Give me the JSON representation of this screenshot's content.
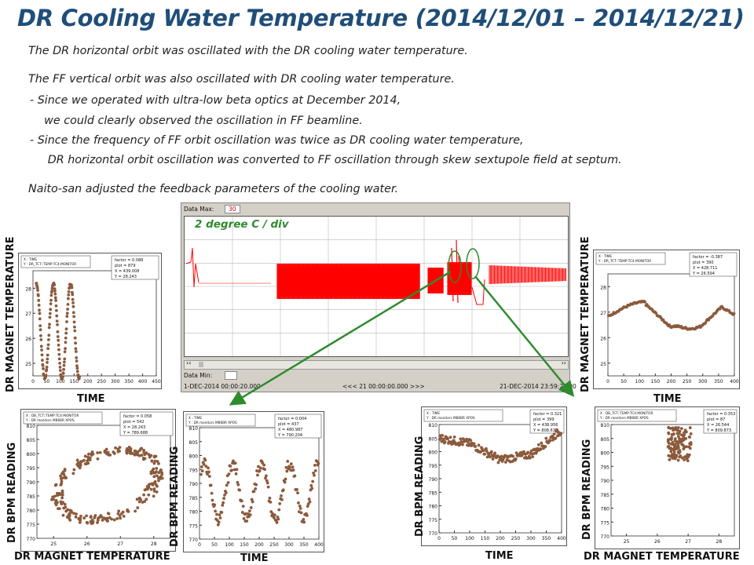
{
  "title": "DR Cooling Water Temperature (2014/12/01 – 2014/12/21)",
  "paragraphs": [
    "The DR horizontal orbit was oscillated with the DR cooling water temperature.",
    "The FF vertical orbit was also oscillated with DR cooling water temperature.",
    " - Since we operated with ultra-low beta optics at December 2014,",
    "    we could clearly observed the oscillation in FF beamline.",
    " - Since the frequency of FF orbit oscillation was twice as DR cooling water temperature,",
    "     DR horizontal orbit oscillation was converted to FF oscillation through skew sextupole field at septum.",
    "Naito-san adjusted the feedback parameters of the cooling water."
  ],
  "scope": {
    "data_max_label": "Data Max:",
    "data_max_value": "30",
    "data_min_label": "Data Min:",
    "data_min_value": "",
    "start_time": "1-DEC-2014 00:00:20.000",
    "span": "<<< 21 00:00:00.000 >>>",
    "end_time": "21-DEC-2014 23:59:20.00",
    "annotation": "2 degree C / div",
    "colors": {
      "signal": "#ff0000",
      "arrow": "#2e8b2e"
    }
  },
  "charts": {
    "temp_left": {
      "legend": [
        "X : TIME",
        "Y : DR_TCT::TEMP:TC4:MONITOR"
      ],
      "stats": [
        "factor = 0.088",
        "plot = 879",
        "X = 439.008",
        "Y = 28.243"
      ],
      "ylabel": "DR MAGNET TEMPERATURE",
      "xlabel": "TIME",
      "yticks": [
        "28",
        "27",
        "26",
        "25"
      ],
      "xticks": [
        "0",
        "50",
        "100",
        "150",
        "200",
        "250",
        "300",
        "350",
        "400",
        "450"
      ]
    },
    "temp_right": {
      "legend": [
        "X : TIME",
        "Y : DR_TCT::TEMP:TC4:MONITOR"
      ],
      "stats": [
        "factor = -0.387",
        "plot = 390",
        "X = 428.711",
        "Y = 26.594"
      ],
      "ylabel": "DR MAGNET TEMPERATURE",
      "xlabel": "TIME",
      "yticks": [
        "28",
        "27",
        "26",
        "25"
      ],
      "xticks": [
        "0",
        "50",
        "100",
        "150",
        "200",
        "250",
        "300",
        "350",
        "400"
      ]
    },
    "bpm_vs_temp_left": {
      "legend": [
        "X : DB_TCT::TEMP:TC4:MONITOR",
        "Y : DR monitors MB6BR XPOS"
      ],
      "stats": [
        "factor = 0.058",
        "plot = 542",
        "X = 28.243",
        "Y = 789.688"
      ],
      "ylabel": "DR BPM READING",
      "xlabel": "DR MAGNET TEMPERATURE",
      "yticks": [
        "810",
        "805",
        "800",
        "795",
        "790",
        "785",
        "780",
        "775",
        "770"
      ],
      "xticks": [
        "25",
        "26",
        "27",
        "28"
      ]
    },
    "bpm_vs_time_left": {
      "legend": [
        "X : TIME",
        "Y : DR monitors MB6BR XPOS"
      ],
      "stats": [
        "factor = 0.004",
        "plot = 437",
        "X = 480.987",
        "Y = 790.204"
      ],
      "ylabel": "DR BPM READING",
      "xlabel": "TIME",
      "yticks": [
        "810",
        "805",
        "800",
        "795",
        "790",
        "785",
        "780",
        "775",
        "770"
      ],
      "xticks": [
        "0",
        "50",
        "100",
        "150",
        "200",
        "250",
        "300",
        "350",
        "400"
      ]
    },
    "bpm_vs_time_right": {
      "legend": [
        "X : TIME",
        "Y : DR monitors MB6BR XPOS"
      ],
      "stats": [
        "factor = 0.321",
        "plot = 399",
        "X = 438.956",
        "Y = 808.637"
      ],
      "ylabel": "DR BPM READING",
      "xlabel": "TIME",
      "yticks": [
        "810",
        "805",
        "800",
        "795",
        "790",
        "785",
        "780",
        "775",
        "770"
      ],
      "xticks": [
        "0",
        "50",
        "100",
        "150",
        "200",
        "250",
        "300",
        "350",
        "400"
      ]
    },
    "bpm_vs_temp_right": {
      "legend": [
        "X : DB_TCT::TEMP:TC4:MONITOR",
        "Y : DR monitors MB6BR XPOS"
      ],
      "stats": [
        "factor = 0.353",
        "plot = 87",
        "X = 26.544",
        "Y = 809.873"
      ],
      "ylabel": "DR BPM READING",
      "xlabel": "DR MAGNET TEMPERATURE",
      "yticks": [
        "810",
        "805",
        "800",
        "795",
        "790",
        "785",
        "780",
        "775",
        "770"
      ],
      "xticks": [
        "25",
        "26",
        "27",
        "28"
      ]
    }
  },
  "chart_data": [
    {
      "type": "scatter",
      "title": "",
      "xlabel": "TIME",
      "ylabel": "DR MAGNET TEMPERATURE",
      "xlim": [
        0,
        450
      ],
      "ylim": [
        24.5,
        28.7
      ],
      "series": [
        {
          "color": "#8b5a3c",
          "pattern": "sine",
          "period": 100,
          "amp": 1.9,
          "mid": 26.3
        }
      ]
    },
    {
      "type": "scatter",
      "title": "",
      "xlabel": "TIME",
      "ylabel": "DR MAGNET TEMPERATURE",
      "xlim": [
        0,
        400
      ],
      "ylim": [
        24.5,
        28.5
      ],
      "series": [
        {
          "color": "#8b5a3c",
          "pattern": "slow-wave"
        }
      ]
    },
    {
      "type": "scatter",
      "title": "",
      "xlabel": "DR MAGNET TEMPERATURE",
      "ylabel": "DR BPM READING",
      "xlim": [
        24.5,
        28.5
      ],
      "ylim": [
        770,
        810
      ],
      "series": [
        {
          "color": "#8b5a3c",
          "pattern": "ellipse"
        }
      ]
    },
    {
      "type": "scatter",
      "title": "",
      "xlabel": "TIME",
      "ylabel": "DR BPM READING",
      "xlim": [
        0,
        400
      ],
      "ylim": [
        770,
        810
      ],
      "series": [
        {
          "color": "#8b5a3c",
          "pattern": "sine",
          "period": 100,
          "amp": 10,
          "mid": 787
        }
      ]
    },
    {
      "type": "scatter",
      "title": "",
      "xlabel": "TIME",
      "ylabel": "DR BPM READING",
      "xlim": [
        0,
        400
      ],
      "ylim": [
        770,
        810
      ],
      "series": [
        {
          "color": "#8b5a3c",
          "pattern": "slow-wave-bpm"
        }
      ]
    },
    {
      "type": "scatter",
      "title": "",
      "xlabel": "DR MAGNET TEMPERATURE",
      "ylabel": "DR BPM READING",
      "xlim": [
        24.5,
        28.5
      ],
      "ylim": [
        770,
        810
      ],
      "series": [
        {
          "color": "#8b5a3c",
          "pattern": "cluster"
        }
      ]
    }
  ]
}
